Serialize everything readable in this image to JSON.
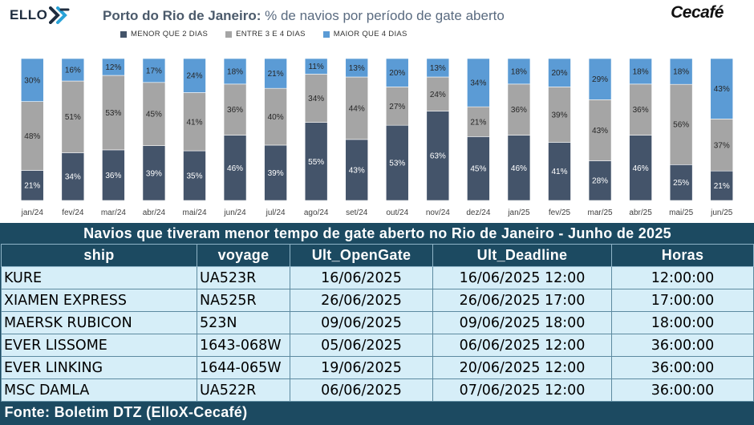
{
  "header": {
    "logo_left": "ELLO",
    "title_bold": "Porto do Rio de Janeiro:",
    "title_rest": " % de navios por período de gate aberto",
    "logo_right": "Cecafé"
  },
  "colors": {
    "s1": "#44546a",
    "s2": "#a5a5a5",
    "s3": "#5b9bd5"
  },
  "chart_data": {
    "type": "bar",
    "stacked": true,
    "normalized": true,
    "title": "Porto do Rio de Janeiro: % de navios por período de gate aberto",
    "categories": [
      "jan/24",
      "fev/24",
      "mar/24",
      "abr/24",
      "mai/24",
      "jun/24",
      "jul/24",
      "ago/24",
      "set/24",
      "out/24",
      "nov/24",
      "dez/24",
      "jan/25",
      "fev/25",
      "mar/25",
      "abr/25",
      "mai/25",
      "jun/25"
    ],
    "series": [
      {
        "name": "MENOR QUE 2 DIAS",
        "color": "#44546a",
        "values": [
          21,
          34,
          36,
          39,
          35,
          46,
          39,
          55,
          43,
          53,
          63,
          45,
          46,
          41,
          28,
          46,
          25,
          21
        ]
      },
      {
        "name": "ENTRE 3 E 4 DIAS",
        "color": "#a5a5a5",
        "values": [
          48,
          51,
          53,
          45,
          41,
          36,
          40,
          34,
          44,
          27,
          24,
          21,
          36,
          39,
          43,
          36,
          56,
          37
        ]
      },
      {
        "name": "MAIOR QUE 4 DIAS",
        "color": "#5b9bd5",
        "values": [
          30,
          16,
          12,
          17,
          24,
          18,
          21,
          11,
          13,
          20,
          13,
          34,
          18,
          20,
          29,
          18,
          18,
          43
        ]
      }
    ],
    "legend_position": "top",
    "ylim": [
      0,
      100
    ],
    "grid": false
  },
  "table": {
    "caption": "Navios que tiveram menor tempo de gate aberto no Rio de Janeiro - Junho de 2025",
    "columns": [
      "ship",
      "voyage",
      "Ult_OpenGate",
      "Ult_Deadline",
      "Horas"
    ],
    "rows": [
      [
        "KURE",
        "UA523R",
        "16/06/2025",
        "16/06/2025 12:00",
        "12:00:00"
      ],
      [
        "XIAMEN EXPRESS",
        "NA525R",
        "26/06/2025",
        "26/06/2025 17:00",
        "17:00:00"
      ],
      [
        "MAERSK RUBICON",
        "523N",
        "09/06/2025",
        "09/06/2025 18:00",
        "18:00:00"
      ],
      [
        "EVER LISSOME",
        "1643-068W",
        "05/06/2025",
        "06/06/2025 12:00",
        "36:00:00"
      ],
      [
        "EVER LINKING",
        "1644-065W",
        "19/06/2025",
        "20/06/2025 12:00",
        "36:00:00"
      ],
      [
        "MSC DAMLA",
        "UA522R",
        "06/06/2025",
        "07/06/2025 12:00",
        "36:00:00"
      ]
    ],
    "footer": "Fonte: Boletim DTZ (ElloX-Cecafé)"
  }
}
